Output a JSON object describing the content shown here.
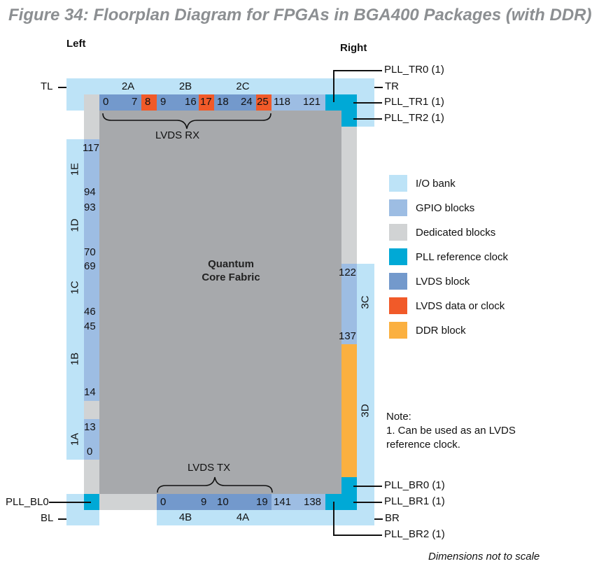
{
  "title": "Figure 34: Floorplan Diagram for FPGAs in BGA400 Packages (with DDR)",
  "headings": {
    "left": "Left",
    "right": "Right"
  },
  "corner_labels": {
    "tl": "TL",
    "tr": "TR",
    "bl": "BL",
    "br": "BR"
  },
  "top_banks": {
    "b2a": "2A",
    "b2b": "2B",
    "b2c": "2C"
  },
  "bottom_banks": {
    "b4b": "4B",
    "b4a": "4A"
  },
  "left_banks": {
    "b1e": "1E",
    "b1d": "1D",
    "b1c": "1C",
    "b1b": "1B",
    "b1a": "1A"
  },
  "right_banks": {
    "b3c": "3C",
    "b3d": "3D"
  },
  "top_numbers": {
    "n0": "0",
    "n7": "7",
    "n8": "8",
    "n9": "9",
    "n16": "16",
    "n17": "17",
    "n18": "18",
    "n24": "24",
    "n25": "25",
    "n118": "118",
    "n121": "121"
  },
  "bottom_numbers": {
    "n0": "0",
    "n9": "9",
    "n10": "10",
    "n19": "19",
    "n141": "141",
    "n138": "138"
  },
  "left_numbers": {
    "n117": "117",
    "n94": "94",
    "n93": "93",
    "n70": "70",
    "n69": "69",
    "n46": "46",
    "n45": "45",
    "n14": "14",
    "n13": "13",
    "n0": "0"
  },
  "right_numbers": {
    "n122": "122",
    "n137": "137"
  },
  "lvds_labels": {
    "rx": "LVDS RX",
    "tx": "LVDS TX"
  },
  "core_label": {
    "line1": "Quantum",
    "line2": "Core Fabric"
  },
  "pll_labels": {
    "tr0": "PLL_TR0 (1)",
    "tr1": "PLL_TR1 (1)",
    "tr2": "PLL_TR2 (1)",
    "br0": "PLL_BR0 (1)",
    "br1": "PLL_BR1 (1)",
    "br2": "PLL_BR2 (1)",
    "bl0": "PLL_BL0"
  },
  "legend": [
    {
      "label": "I/O bank",
      "color": "#bde3f7"
    },
    {
      "label": "GPIO blocks",
      "color": "#9dbde3"
    },
    {
      "label": "Dedicated blocks",
      "color": "#d1d3d4"
    },
    {
      "label": "PLL reference clock",
      "color": "#00a9d6"
    },
    {
      "label": "LVDS block",
      "color": "#7399cc"
    },
    {
      "label": "LVDS data or clock",
      "color": "#f15a29"
    },
    {
      "label": "DDR block",
      "color": "#fbb040"
    }
  ],
  "note": {
    "heading": "Note:",
    "line1": "1. Can be used as an LVDS",
    "line2": "reference clock."
  },
  "footer": "Dimensions not to scale"
}
